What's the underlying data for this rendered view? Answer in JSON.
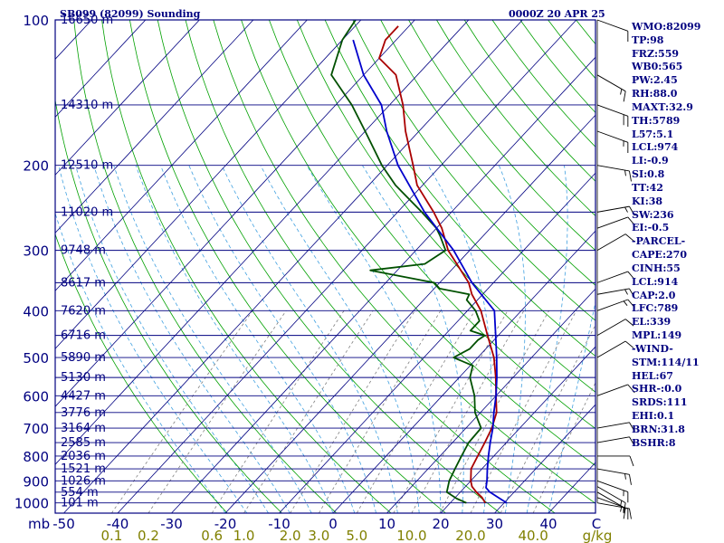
{
  "header": {
    "station": "SB099 (82099) Sounding",
    "time": "0000Z 20 APR 25"
  },
  "indices": [
    "WMO:82099",
    "TP:98",
    "FRZ:559",
    "WB0:565",
    "PW:2.45",
    "RH:88.0",
    "MAXT:32.9",
    "TH:5789",
    "L57:5.1",
    "LCL:974",
    "LI:-0.9",
    "SI:0.8",
    "TT:42",
    "KI:38",
    "SW:236",
    "EI:-0.5",
    "-PARCEL-",
    "CAPE:270",
    "CINH:55",
    "LCL:914",
    "CAP:2.0",
    "LFC:789",
    "EL:339",
    "MPL:149",
    "-WIND-",
    "STM:114/11",
    "HEL:67",
    "SHR-:0.0",
    "SRDS:111",
    "EHI:0.1",
    "BRN:31.8",
    "BSHR:8"
  ],
  "colors": {
    "frame": "#000080",
    "isotherm": "#000080",
    "dry_adiabat": "#00a000",
    "moist_adiabat": "#40a0e0",
    "mixing_ratio": "#808080",
    "temperature": "#aa0000",
    "dewpoint": "#005000",
    "parcel": "#0000cc",
    "axis_text": "#000080",
    "mixing_text": "#808000"
  },
  "chart_data": {
    "type": "skew-t log-p sounding",
    "pressure_axis": {
      "label": "mb",
      "ticks": [
        100,
        200,
        300,
        400,
        500,
        600,
        700,
        800,
        900,
        1000
      ],
      "range": [
        100,
        1050
      ]
    },
    "height_labels": [
      {
        "p": 100,
        "label": "16650 m"
      },
      {
        "p": 150,
        "label": "14310 m"
      },
      {
        "p": 200,
        "label": "12510 m"
      },
      {
        "p": 250,
        "label": "11020 m"
      },
      {
        "p": 300,
        "label": "9748 m"
      },
      {
        "p": 350,
        "label": "8617 m"
      },
      {
        "p": 400,
        "label": "7620 m"
      },
      {
        "p": 450,
        "label": "6716 m"
      },
      {
        "p": 500,
        "label": "5890 m"
      },
      {
        "p": 550,
        "label": "5130 m"
      },
      {
        "p": 600,
        "label": "4427 m"
      },
      {
        "p": 650,
        "label": "3776 m"
      },
      {
        "p": 700,
        "label": "3164 m"
      },
      {
        "p": 750,
        "label": "2585 m"
      },
      {
        "p": 800,
        "label": "2036 m"
      },
      {
        "p": 850,
        "label": "1521 m"
      },
      {
        "p": 900,
        "label": "1026 m"
      },
      {
        "p": 950,
        "label": "554 m"
      },
      {
        "p": 1000,
        "label": "101 m"
      }
    ],
    "temperature_axis": {
      "label": "C",
      "ticks": [
        -50,
        -40,
        -30,
        -20,
        -10,
        0,
        10,
        20,
        30,
        40
      ]
    },
    "mixing_ratio_axis": {
      "label": "g/kg",
      "ticks": [
        "0.1",
        "0.2",
        "0.6",
        "1.0",
        "2.0",
        "3.0",
        "5.0",
        "10.0",
        "20.0",
        "40.0"
      ]
    },
    "series": [
      {
        "name": "Temperature",
        "points": [
          [
            1000,
            26.5
          ],
          [
            975,
            25.0
          ],
          [
            950,
            23.0
          ],
          [
            925,
            21.2
          ],
          [
            900,
            20.0
          ],
          [
            850,
            18.0
          ],
          [
            800,
            17.0
          ],
          [
            750,
            16.0
          ],
          [
            700,
            14.8
          ],
          [
            650,
            13.0
          ],
          [
            600,
            10.0
          ],
          [
            550,
            6.8
          ],
          [
            500,
            3.0
          ],
          [
            450,
            -2.0
          ],
          [
            400,
            -7.5
          ],
          [
            370,
            -12.0
          ],
          [
            350,
            -14.6
          ],
          [
            300,
            -24.0
          ],
          [
            270,
            -29.0
          ],
          [
            250,
            -33.3
          ],
          [
            220,
            -41.0
          ],
          [
            200,
            -45.2
          ],
          [
            170,
            -52.5
          ],
          [
            150,
            -57.5
          ],
          [
            130,
            -64.0
          ],
          [
            120,
            -70.0
          ],
          [
            110,
            -72.0
          ],
          [
            103,
            -72.0
          ]
        ]
      },
      {
        "name": "Dewpoint",
        "points": [
          [
            1000,
            23.0
          ],
          [
            980,
            20.5
          ],
          [
            950,
            17.5
          ],
          [
            900,
            16.0
          ],
          [
            850,
            15.0
          ],
          [
            800,
            14.0
          ],
          [
            750,
            13.0
          ],
          [
            700,
            12.8
          ],
          [
            650,
            9.0
          ],
          [
            600,
            6.0
          ],
          [
            550,
            2.0
          ],
          [
            520,
            0.5
          ],
          [
            500,
            -4.5
          ],
          [
            480,
            -3.0
          ],
          [
            460,
            -3.0
          ],
          [
            450,
            -2.5
          ],
          [
            440,
            -6.0
          ],
          [
            420,
            -6.0
          ],
          [
            400,
            -8.5
          ],
          [
            380,
            -12.0
          ],
          [
            370,
            -12.5
          ],
          [
            360,
            -19.0
          ],
          [
            350,
            -21.0
          ],
          [
            330,
            -35.0
          ],
          [
            320,
            -26.0
          ],
          [
            300,
            -24.5
          ],
          [
            280,
            -28.0
          ],
          [
            270,
            -30.0
          ],
          [
            250,
            -35.5
          ],
          [
            220,
            -45.0
          ],
          [
            200,
            -51.0
          ],
          [
            170,
            -60.0
          ],
          [
            150,
            -67.0
          ],
          [
            130,
            -76.0
          ],
          [
            110,
            -80.0
          ],
          [
            100,
            -81.0
          ]
        ]
      },
      {
        "name": "Parcel",
        "points": [
          [
            1000,
            30.5
          ],
          [
            975,
            28.0
          ],
          [
            950,
            25.5
          ],
          [
            930,
            24.0
          ],
          [
            900,
            23.0
          ],
          [
            850,
            21.0
          ],
          [
            800,
            19.0
          ],
          [
            750,
            17.0
          ],
          [
            700,
            15.0
          ],
          [
            650,
            12.5
          ],
          [
            600,
            10.0
          ],
          [
            550,
            7.0
          ],
          [
            500,
            3.5
          ],
          [
            450,
            -0.5
          ],
          [
            400,
            -5.0
          ],
          [
            350,
            -14.0
          ],
          [
            300,
            -23.0
          ],
          [
            250,
            -35.0
          ],
          [
            200,
            -48.0
          ],
          [
            170,
            -56.0
          ],
          [
            150,
            -61.5
          ],
          [
            130,
            -70.0
          ],
          [
            110,
            -78.0
          ]
        ]
      }
    ],
    "wind_barbs": [
      {
        "p": 1000,
        "dir": 100,
        "speed": 10
      },
      {
        "p": 975,
        "dir": 110,
        "speed": 15
      },
      {
        "p": 950,
        "dir": 120,
        "speed": 15
      },
      {
        "p": 925,
        "dir": 120,
        "speed": 15
      },
      {
        "p": 900,
        "dir": 110,
        "speed": 15
      },
      {
        "p": 850,
        "dir": 100,
        "speed": 15
      },
      {
        "p": 800,
        "dir": 90,
        "speed": 10
      },
      {
        "p": 750,
        "dir": 80,
        "speed": 10
      },
      {
        "p": 700,
        "dir": 80,
        "speed": 10
      },
      {
        "p": 600,
        "dir": 70,
        "speed": 10
      },
      {
        "p": 500,
        "dir": 60,
        "speed": 10
      },
      {
        "p": 450,
        "dir": 60,
        "speed": 10
      },
      {
        "p": 400,
        "dir": 70,
        "speed": 15
      },
      {
        "p": 370,
        "dir": 80,
        "speed": 15
      },
      {
        "p": 350,
        "dir": 70,
        "speed": 10
      },
      {
        "p": 300,
        "dir": 60,
        "speed": 10
      },
      {
        "p": 270,
        "dir": 70,
        "speed": 10
      },
      {
        "p": 250,
        "dir": 80,
        "speed": 15
      },
      {
        "p": 200,
        "dir": 100,
        "speed": 15
      },
      {
        "p": 170,
        "dir": 110,
        "speed": 15
      },
      {
        "p": 150,
        "dir": 110,
        "speed": 20
      },
      {
        "p": 130,
        "dir": 120,
        "speed": 15
      },
      {
        "p": 100,
        "dir": 110,
        "speed": 10
      }
    ]
  }
}
